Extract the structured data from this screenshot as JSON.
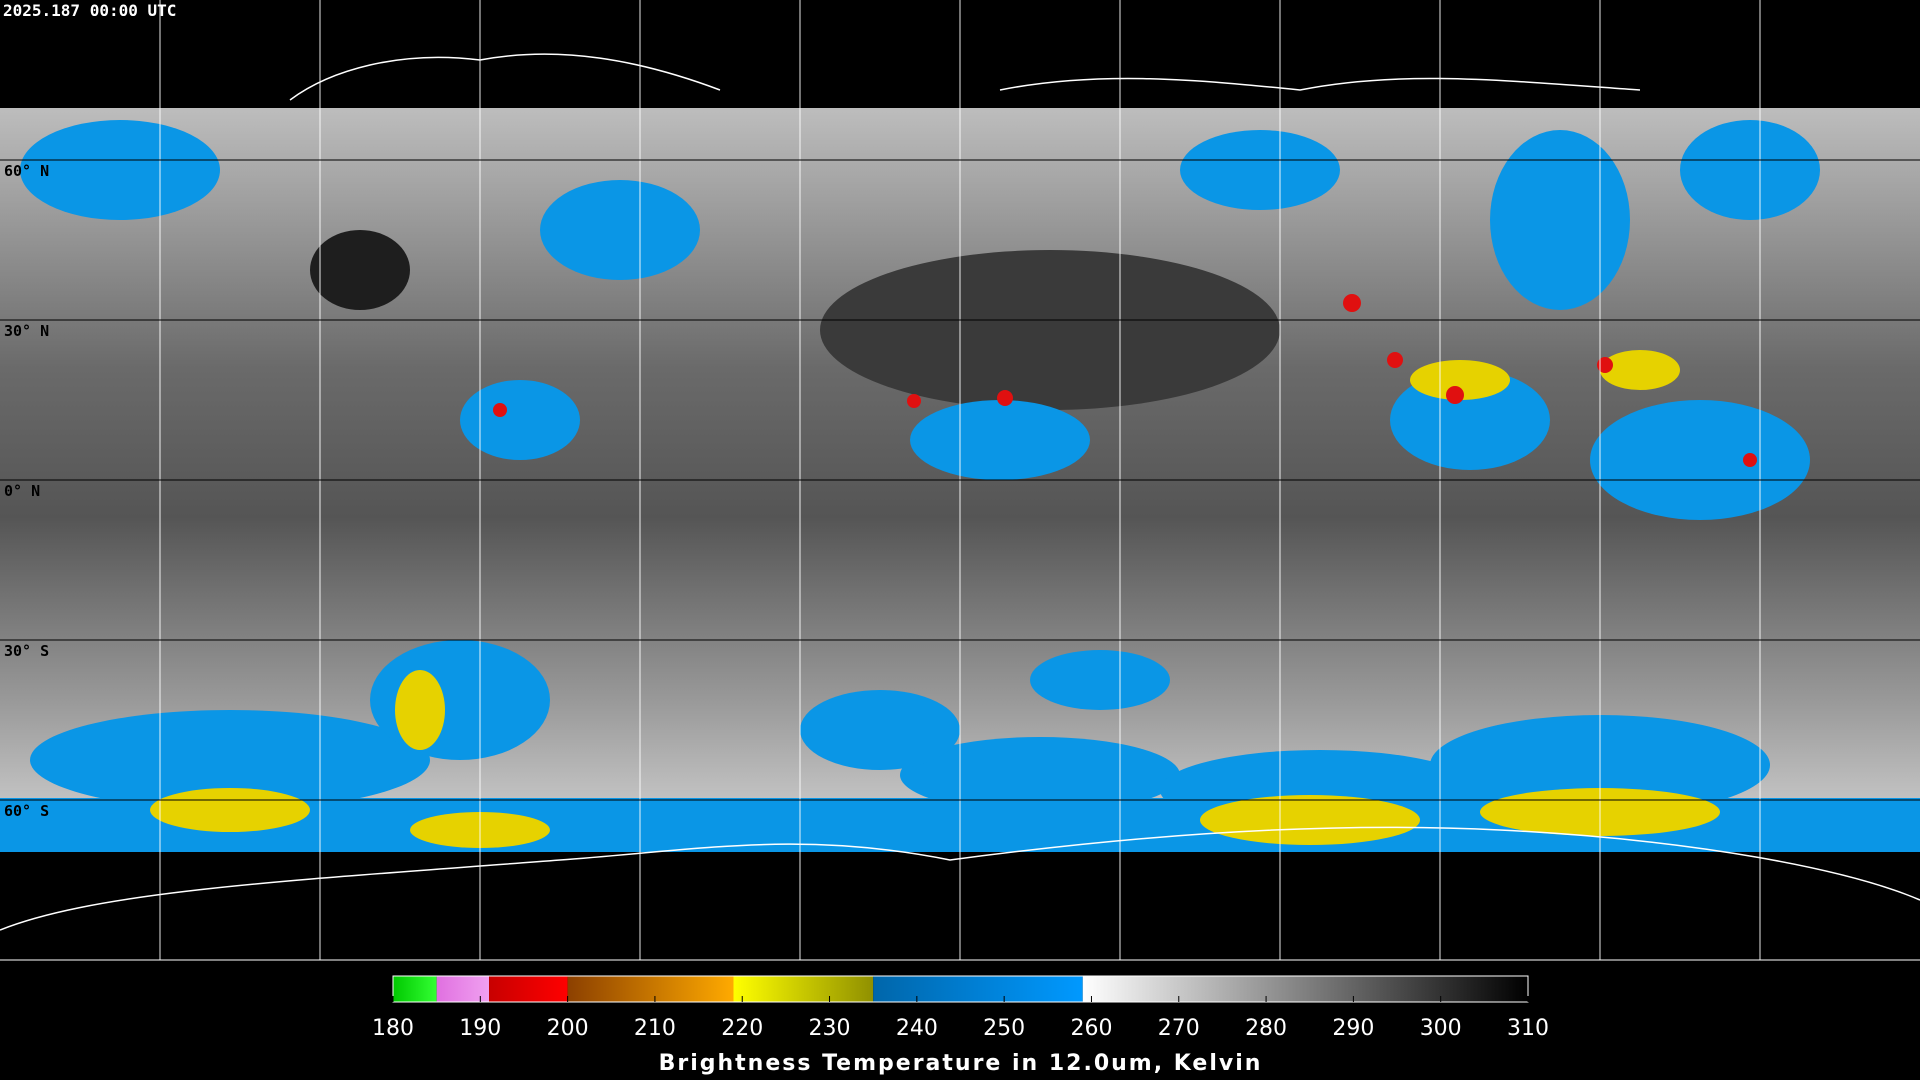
{
  "header": {
    "timestamp": "2025.187 00:00 UTC"
  },
  "map": {
    "parallels": [
      {
        "value": 60,
        "label": "60° N"
      },
      {
        "value": 30,
        "label": "30° N"
      },
      {
        "value": 0,
        "label": "0° N"
      },
      {
        "value": -30,
        "label": "30° S"
      },
      {
        "value": -60,
        "label": "60° S"
      }
    ]
  },
  "colorbar": {
    "range": [
      180,
      310
    ],
    "ticks": [
      180,
      190,
      200,
      210,
      220,
      230,
      240,
      250,
      260,
      270,
      280,
      290,
      300,
      310
    ],
    "title": "Brightness Temperature in 12.0um, Kelvin",
    "segments": [
      {
        "from": 180,
        "to": 185,
        "colors": [
          "#00c800",
          "#33ff33"
        ]
      },
      {
        "from": 185,
        "to": 191,
        "colors": [
          "#e070e0",
          "#f0a0f0"
        ]
      },
      {
        "from": 191,
        "to": 200,
        "colors": [
          "#c80000",
          "#ff0000"
        ]
      },
      {
        "from": 200,
        "to": 219,
        "colors": [
          "#8c4000",
          "#ffaa00"
        ]
      },
      {
        "from": 219,
        "to": 235,
        "colors": [
          "#ffff00",
          "#909000"
        ]
      },
      {
        "from": 235,
        "to": 259,
        "colors": [
          "#0066aa",
          "#0099ff"
        ]
      },
      {
        "from": 259,
        "to": 310,
        "colors": [
          "#ffffff",
          "#000000"
        ]
      }
    ]
  }
}
